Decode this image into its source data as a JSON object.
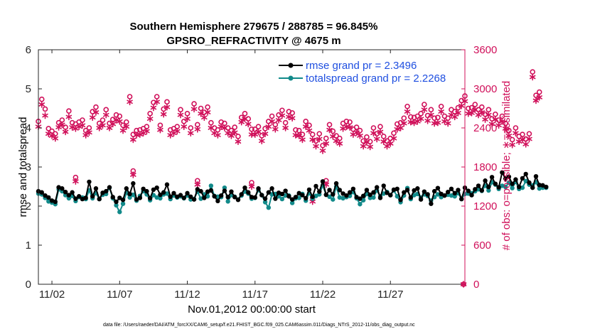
{
  "title_line1": "Southern Hemisphere 279675 / 288785 = 96.845%",
  "title_line2": "GPSRO_REFRACTIVITY @ 4675 m",
  "footnote": "data file: /Users/raeder/DAI/ATM_forcXX/CAM6_setup/f.e21.FHIST_BGC.f09_025.CAM6assim.011/Diags_NTrS_2012-11/obs_diag_output.nc",
  "colors": {
    "rmse": "#000000",
    "spread": "#128a8a",
    "obs": "#d0105a",
    "legend_text": "#1f4fe0"
  },
  "chart_data": {
    "type": "line",
    "xlabel": "Nov.01,2012 00:00:00 start",
    "ylabel_left": "rmse and totalspread",
    "ylabel_right": "# of obs: o=possible; ∗=assimilated",
    "xlim": [
      0,
      31.5
    ],
    "ylim_left": [
      0,
      6
    ],
    "ylim_right": [
      0,
      3600
    ],
    "x_tick_positions": [
      1,
      6,
      11,
      16,
      21,
      26
    ],
    "x_tick_labels": [
      "11/02",
      "11/07",
      "11/12",
      "11/17",
      "11/22",
      "11/27"
    ],
    "y_left_ticks": [
      "0",
      "1",
      "2",
      "3",
      "4",
      "5",
      "6"
    ],
    "y_right_ticks": [
      "0",
      "600",
      "1200",
      "1800",
      "2400",
      "3000",
      "3600"
    ],
    "legend": [
      {
        "label": "rmse grand pr = 2.3496",
        "series": "rmse"
      },
      {
        "label": "totalspread grand pr = 2.2268",
        "series": "totalspread"
      }
    ],
    "step_days": 0.25,
    "series": [
      {
        "name": "rmse",
        "axis": "left",
        "values": [
          2.38,
          2.35,
          2.27,
          2.22,
          2.14,
          2.11,
          2.48,
          2.45,
          2.36,
          2.28,
          2.35,
          2.19,
          2.25,
          2.18,
          2.21,
          2.62,
          2.25,
          2.45,
          2.18,
          2.34,
          2.38,
          2.48,
          2.23,
          2.11,
          2.21,
          2.16,
          2.45,
          2.31,
          2.58,
          2.17,
          2.21,
          2.44,
          2.38,
          2.2,
          2.42,
          2.47,
          2.29,
          2.35,
          2.55,
          2.24,
          2.33,
          2.24,
          2.28,
          2.21,
          2.33,
          2.24,
          2.17,
          2.43,
          2.38,
          2.21,
          2.37,
          2.4,
          2.25,
          2.13,
          2.27,
          2.39,
          2.23,
          2.37,
          2.23,
          2.16,
          2.3,
          2.47,
          2.35,
          2.23,
          2.22,
          2.45,
          2.28,
          2.19,
          2.35,
          2.45,
          2.19,
          2.34,
          2.31,
          2.39,
          2.25,
          2.17,
          2.23,
          2.33,
          2.28,
          2.2,
          2.42,
          2.24,
          2.51,
          2.37,
          2.63,
          2.29,
          2.41,
          2.3,
          2.58,
          2.41,
          2.32,
          2.27,
          2.35,
          2.44,
          2.23,
          2.19,
          2.26,
          2.41,
          2.29,
          2.35,
          2.48,
          2.21,
          2.52,
          2.34,
          2.28,
          2.42,
          2.44,
          2.16,
          2.35,
          2.41,
          2.22,
          2.4,
          2.45,
          2.17,
          2.37,
          2.3,
          2.06,
          2.38,
          2.46,
          2.31,
          2.27,
          2.36,
          2.44,
          2.33,
          2.41,
          2.18,
          2.47,
          2.39,
          2.28,
          2.43,
          2.52,
          2.4,
          2.65,
          2.49,
          2.74,
          2.57,
          2.48,
          2.86,
          2.7,
          2.75,
          2.57,
          2.68,
          2.49,
          2.71,
          2.82,
          2.6,
          2.47,
          2.76,
          2.54,
          2.53,
          2.49
        ]
      },
      {
        "name": "totalspread",
        "axis": "left",
        "values": [
          2.32,
          2.3,
          2.21,
          2.12,
          2.09,
          2.05,
          2.43,
          2.38,
          2.28,
          2.2,
          2.26,
          2.13,
          2.23,
          2.22,
          2.18,
          2.4,
          2.2,
          2.33,
          2.18,
          2.29,
          2.31,
          2.47,
          2.2,
          2.02,
          1.85,
          2.06,
          2.34,
          2.22,
          2.29,
          2.14,
          2.26,
          2.38,
          2.3,
          2.15,
          2.28,
          2.22,
          2.2,
          2.3,
          2.32,
          2.18,
          2.27,
          2.22,
          2.25,
          2.2,
          2.27,
          2.17,
          2.18,
          2.37,
          2.19,
          2.3,
          2.25,
          2.52,
          2.26,
          2.24,
          2.23,
          2.47,
          2.12,
          2.28,
          2.24,
          2.17,
          2.27,
          2.37,
          2.32,
          2.19,
          2.21,
          2.41,
          2.28,
          2.1,
          1.96,
          2.3,
          2.31,
          2.25,
          2.18,
          2.27,
          2.27,
          2.08,
          2.2,
          2.21,
          2.31,
          2.14,
          2.33,
          2.19,
          2.26,
          2.3,
          2.53,
          2.29,
          2.24,
          2.17,
          2.5,
          2.22,
          2.2,
          2.23,
          2.26,
          2.36,
          2.2,
          2.05,
          2.15,
          2.31,
          2.21,
          2.22,
          2.4,
          2.25,
          2.32,
          2.36,
          2.28,
          2.4,
          2.25,
          2.1,
          2.27,
          2.46,
          2.18,
          2.28,
          2.31,
          2.22,
          2.3,
          2.26,
          2.14,
          2.23,
          2.3,
          2.23,
          2.27,
          2.29,
          2.27,
          2.25,
          2.33,
          2.18,
          2.31,
          2.32,
          2.33,
          2.38,
          2.43,
          2.39,
          2.52,
          2.4,
          2.61,
          2.55,
          2.44,
          2.52,
          2.49,
          2.6,
          2.46,
          2.62,
          2.44,
          2.47,
          2.64,
          2.55,
          2.53,
          2.61,
          2.45,
          2.47,
          2.47
        ]
      },
      {
        "name": "obs_possible",
        "axis": "right",
        "values": [
          2500,
          2840,
          2690,
          2390,
          2350,
          2310,
          2480,
          2520,
          2410,
          2660,
          2480,
          2460,
          2490,
          2520,
          2360,
          2400,
          2650,
          2720,
          2470,
          2520,
          2680,
          2470,
          2530,
          2600,
          2580,
          2440,
          2490,
          2880,
          2300,
          2360,
          2370,
          2390,
          2420,
          2620,
          2790,
          2880,
          2440,
          2690,
          2800,
          2370,
          2390,
          2420,
          2680,
          2500,
          2620,
          2400,
          2770,
          2450,
          2700,
          2640,
          2720,
          2480,
          2400,
          2370,
          2490,
          2470,
          2400,
          2360,
          2410,
          2270,
          2560,
          2620,
          2540,
          2380,
          2380,
          2420,
          2280,
          2390,
          2500,
          2580,
          2450,
          2600,
          2670,
          2480,
          2650,
          2630,
          2370,
          2360,
          2300,
          2500,
          2440,
          2300,
          2200,
          2310,
          2130,
          2240,
          2450,
          2350,
          2280,
          2240,
          2470,
          2500,
          2490,
          2380,
          2410,
          2360,
          2200,
          2260,
          2190,
          2400,
          2310,
          2420,
          2270,
          2200,
          2240,
          2320,
          2460,
          2480,
          2550,
          2730,
          2570,
          2560,
          2580,
          2620,
          2760,
          2590,
          2680,
          2550,
          2560,
          2730,
          2580,
          2550,
          2680,
          2650,
          2710,
          2820,
          2890,
          2700,
          2710,
          2760,
          2680,
          2720,
          2610,
          2680,
          2540,
          2610,
          2520,
          2580,
          2470,
          2360,
          2220,
          2400,
          2270,
          2300,
          2230,
          2310,
          3260,
          2900,
          2950
        ]
      },
      {
        "name": "obs_assimilated",
        "axis": "right",
        "values": [
          2420,
          2760,
          2590,
          2310,
          2280,
          2240,
          2410,
          2450,
          2340,
          2570,
          2410,
          2390,
          2420,
          2440,
          2290,
          2330,
          2560,
          2640,
          2400,
          2440,
          2600,
          2400,
          2460,
          2520,
          2500,
          2360,
          2420,
          2800,
          2220,
          2290,
          2300,
          2320,
          2350,
          2540,
          2710,
          2800,
          2370,
          2610,
          2720,
          2290,
          2320,
          2350,
          2600,
          2420,
          2540,
          2320,
          2690,
          2380,
          2620,
          2560,
          2640,
          2400,
          2320,
          2290,
          2420,
          2400,
          2320,
          2280,
          2330,
          2190,
          2490,
          2540,
          2460,
          2300,
          2300,
          2340,
          2200,
          2310,
          2420,
          2500,
          2380,
          2520,
          2590,
          2400,
          2570,
          2550,
          2290,
          2280,
          2220,
          2420,
          2360,
          2220,
          2120,
          2230,
          2050,
          2160,
          2370,
          2270,
          2200,
          2160,
          2390,
          2420,
          2410,
          2300,
          2330,
          2280,
          2120,
          2180,
          2110,
          2320,
          2230,
          2340,
          2190,
          2120,
          2160,
          2240,
          2380,
          2400,
          2470,
          2650,
          2490,
          2480,
          2500,
          2540,
          2680,
          2510,
          2600,
          2470,
          2480,
          2650,
          2500,
          2470,
          2600,
          2570,
          2630,
          2740,
          2810,
          2620,
          2630,
          2680,
          2600,
          2640,
          2530,
          2600,
          2460,
          2530,
          2440,
          2500,
          2390,
          2280,
          2140,
          2320,
          2190,
          2220,
          2150,
          2230,
          3180,
          2820,
          2870
        ]
      }
    ],
    "outlier_points": [
      {
        "series": "obs_possible",
        "x": 2.75,
        "y": 1640
      },
      {
        "series": "obs_assimilated",
        "x": 2.75,
        "y": 1580
      },
      {
        "series": "obs_possible",
        "x": 7.0,
        "y": 1740
      },
      {
        "series": "obs_assimilated",
        "x": 7.0,
        "y": 1680
      },
      {
        "series": "obs_possible",
        "x": 11.75,
        "y": 1590
      },
      {
        "series": "obs_assimilated",
        "x": 11.75,
        "y": 1530
      },
      {
        "series": "obs_possible",
        "x": 15.75,
        "y": 1560
      },
      {
        "series": "obs_assimilated",
        "x": 15.75,
        "y": 1500
      },
      {
        "series": "obs_possible",
        "x": 20.25,
        "y": 1330
      },
      {
        "series": "obs_assimilated",
        "x": 20.25,
        "y": 1270
      },
      {
        "series": "obs_possible",
        "x": 21.25,
        "y": 1590
      },
      {
        "series": "obs_assimilated",
        "x": 21.25,
        "y": 1530
      },
      {
        "series": "obs_possible",
        "x": 31.4,
        "y": 0
      },
      {
        "series": "obs_assimilated",
        "x": 31.4,
        "y": 0
      }
    ]
  }
}
